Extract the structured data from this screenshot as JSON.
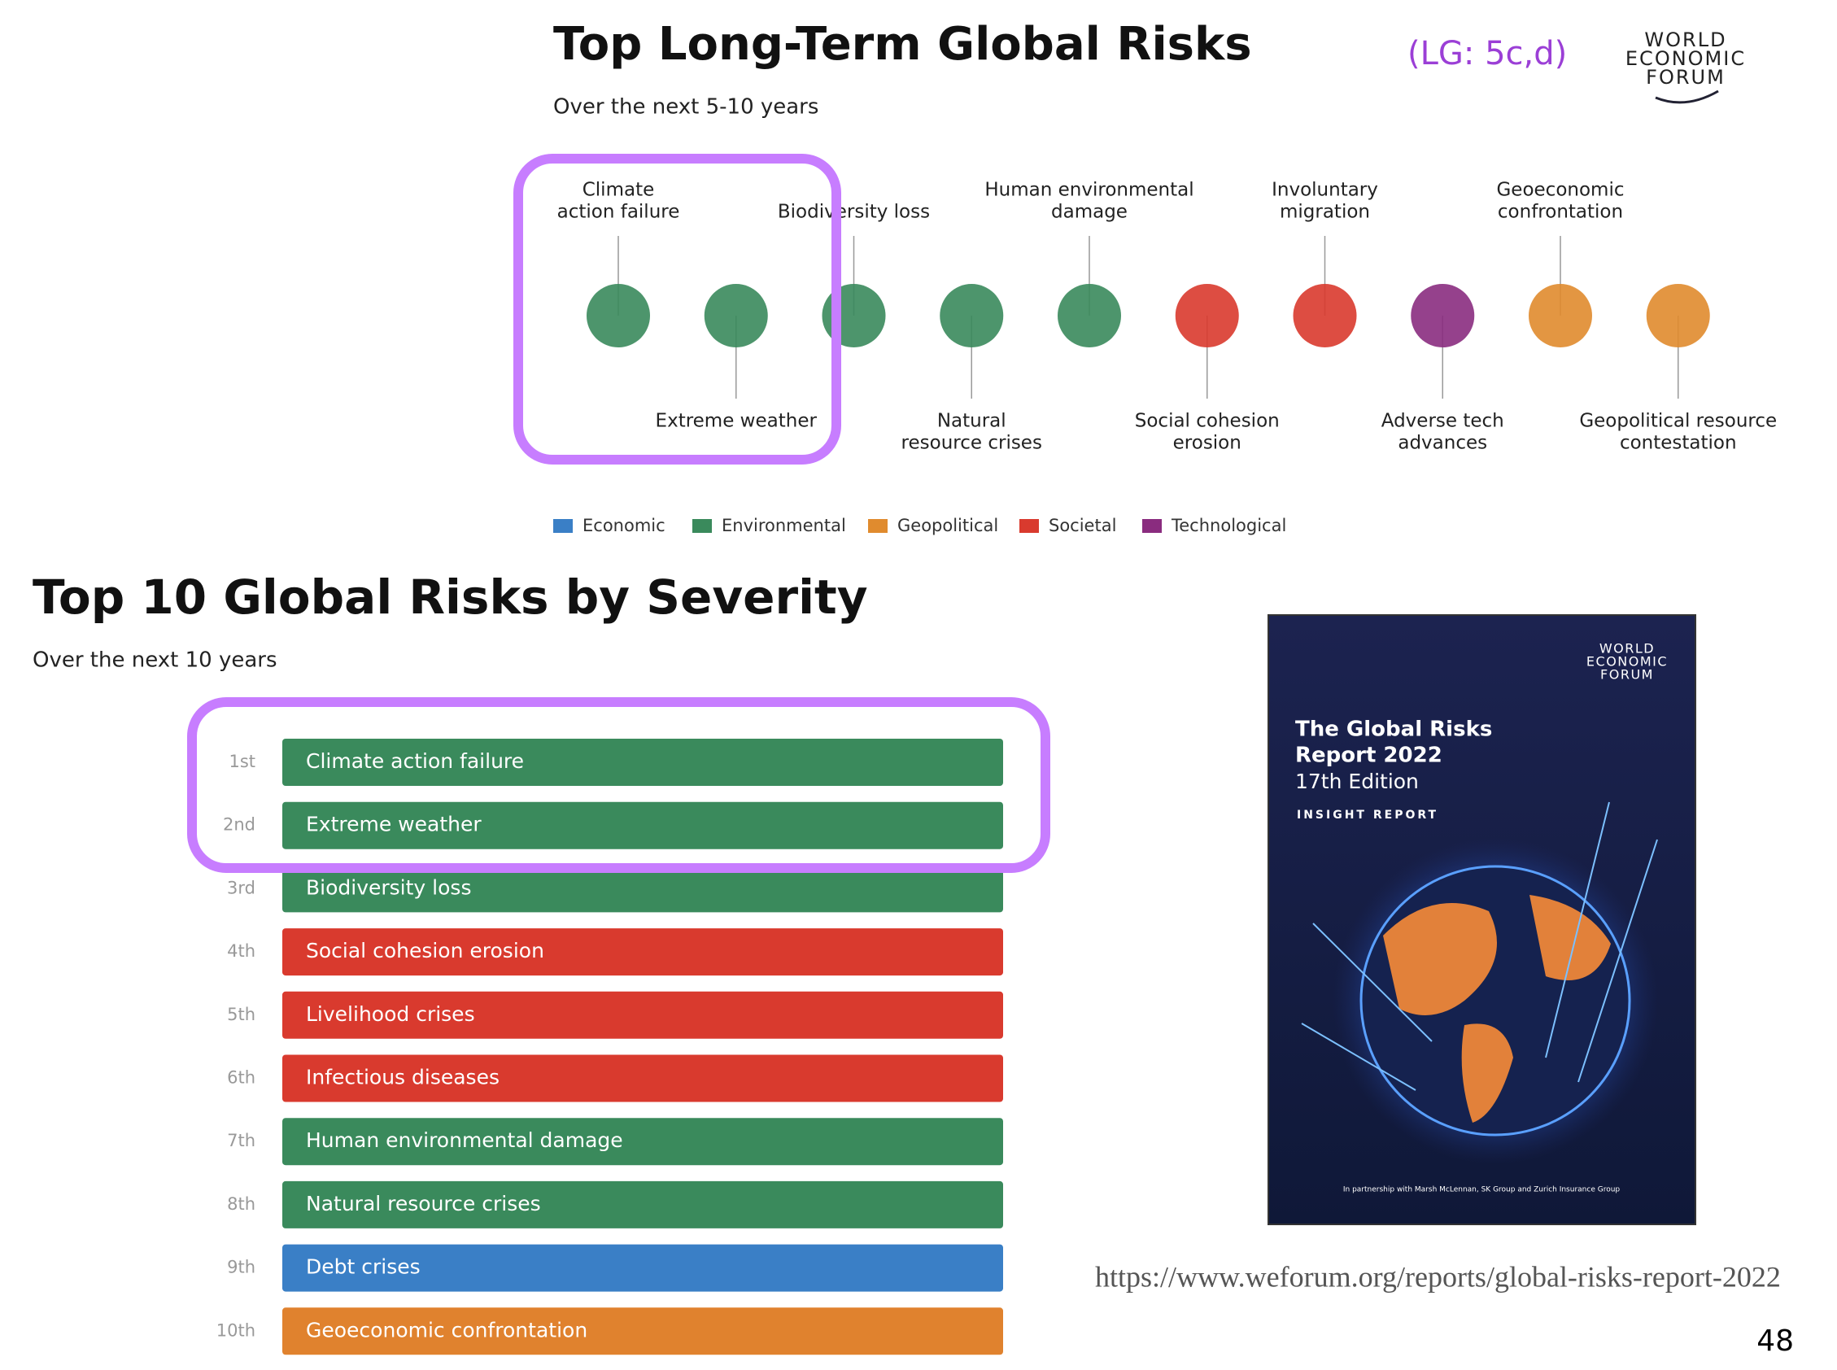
{
  "top": {
    "title": "Top Long-Term Global Risks",
    "subtitle": "Over the next 5-10 years",
    "risks": [
      {
        "label": [
          "Climate",
          "action failure"
        ],
        "color": "#3a8a5c"
      },
      {
        "label": [
          "Extreme weather"
        ],
        "color": "#3a8a5c"
      },
      {
        "label": [
          "Biodiversity loss"
        ],
        "color": "#3a8a5c"
      },
      {
        "label": [
          "Natural",
          "resource crises"
        ],
        "color": "#3a8a5c"
      },
      {
        "label": [
          "Human environmental",
          "damage"
        ],
        "color": "#3a8a5c"
      },
      {
        "label": [
          "Social cohesion",
          "erosion"
        ],
        "color": "#d93a2e"
      },
      {
        "label": [
          "Involuntary",
          "migration"
        ],
        "color": "#d93a2e"
      },
      {
        "label": [
          "Adverse tech",
          "advances"
        ],
        "color": "#8a2c7f"
      },
      {
        "label": [
          "Geoeconomic",
          "confrontation"
        ],
        "color": "#e08b2e"
      },
      {
        "label": [
          "Geopolitical resource",
          "contestation"
        ],
        "color": "#e08b2e"
      }
    ],
    "legend": [
      {
        "label": "Economic",
        "color": "#3a7fc6"
      },
      {
        "label": "Environmental",
        "color": "#3a8a5c"
      },
      {
        "label": "Geopolitical",
        "color": "#e08b2e"
      },
      {
        "label": "Societal",
        "color": "#d93a2e"
      },
      {
        "label": "Technological",
        "color": "#8a2c7f"
      }
    ]
  },
  "tag": "(LG: 5c,d)",
  "logo": [
    "WORLD",
    "ECONOMIC",
    "FORUM"
  ],
  "severity": {
    "title": "Top 10 Global Risks by Severity",
    "subtitle": "Over the next 10 years",
    "rows": [
      {
        "rank": "1st",
        "label": "Climate action failure",
        "color": "#3a8a5c"
      },
      {
        "rank": "2nd",
        "label": "Extreme weather",
        "color": "#3a8a5c"
      },
      {
        "rank": "3rd",
        "label": "Biodiversity loss",
        "color": "#3a8a5c"
      },
      {
        "rank": "4th",
        "label": "Social cohesion erosion",
        "color": "#d93a2e"
      },
      {
        "rank": "5th",
        "label": "Livelihood crises",
        "color": "#d93a2e"
      },
      {
        "rank": "6th",
        "label": "Infectious diseases",
        "color": "#d93a2e"
      },
      {
        "rank": "7th",
        "label": "Human environmental damage",
        "color": "#3a8a5c"
      },
      {
        "rank": "8th",
        "label": "Natural resource crises",
        "color": "#3a8a5c"
      },
      {
        "rank": "9th",
        "label": "Debt crises",
        "color": "#3a7fc6"
      },
      {
        "rank": "10th",
        "label": "Geoeconomic confrontation",
        "color": "#e0822e"
      }
    ]
  },
  "cover": {
    "title": [
      "The Global Risks",
      "Report 2022"
    ],
    "edition": "17th Edition",
    "kind": "INSIGHT REPORT",
    "logo": [
      "WORLD",
      "ECONOMIC",
      "FORUM"
    ],
    "partners": "In partnership with Marsh McLennan, SK Group and Zurich Insurance Group"
  },
  "url": "https://www.weforum.org/reports/global-risks-report-2022",
  "page": "48"
}
